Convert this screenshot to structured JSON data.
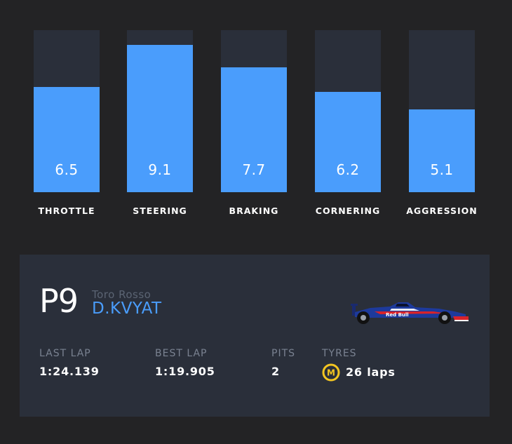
{
  "stats": [
    {
      "label": "THROTTLE",
      "value": "6.5",
      "score": 6.5
    },
    {
      "label": "STEERING",
      "value": "9.1",
      "score": 9.1
    },
    {
      "label": "BRAKING",
      "value": "7.7",
      "score": 7.7
    },
    {
      "label": "CORNERING",
      "value": "6.2",
      "score": 6.2
    },
    {
      "label": "AGGRESSION",
      "value": "5.1",
      "score": 5.1
    }
  ],
  "stats_max": 10,
  "colors": {
    "background": "#232325",
    "panel": "#2a2f3a",
    "bar_fill": "#4a9dfc",
    "accent": "#4a9dfc",
    "muted": "#7a8291",
    "tyre_medium": "#f3c521"
  },
  "driver": {
    "position": "P9",
    "team": "Toro Rosso",
    "name": "D.KVYAT",
    "car_icon": "toro-rosso-car-icon"
  },
  "metrics": {
    "last_lap": {
      "label": "LAST LAP",
      "value": "1:24.139"
    },
    "best_lap": {
      "label": "BEST LAP",
      "value": "1:19.905"
    },
    "pits": {
      "label": "PITS",
      "value": "2"
    },
    "tyres": {
      "label": "TYRES",
      "compound": "M",
      "value": "26 laps",
      "icon": "medium-tyre-icon"
    }
  }
}
